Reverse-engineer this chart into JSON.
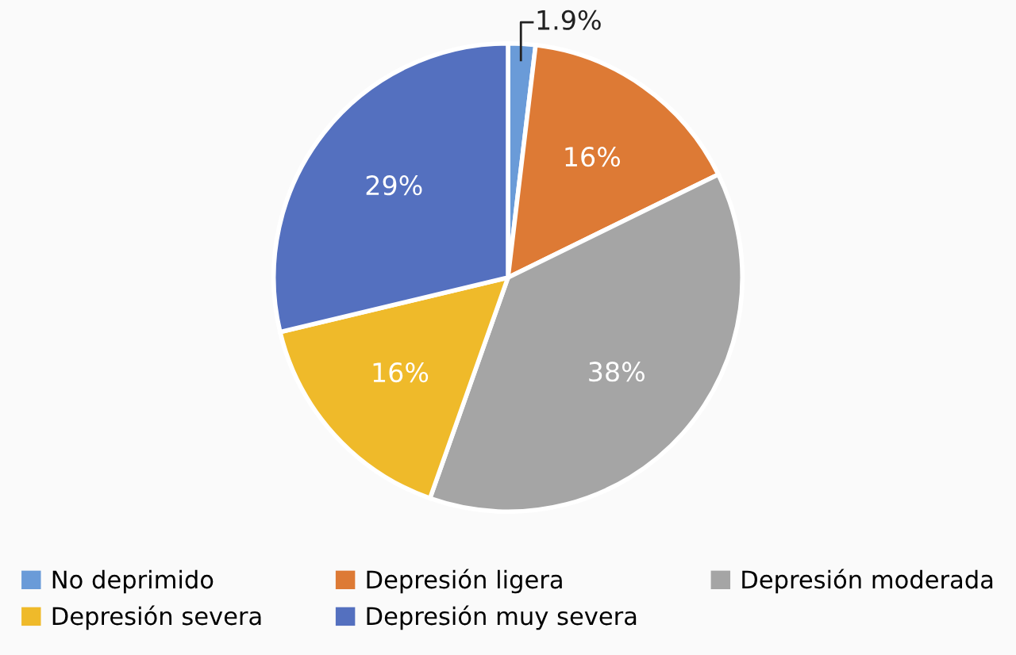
{
  "chart_data": {
    "type": "pie",
    "categories": [
      "No deprimido",
      "Depresión ligera",
      "Depresión moderada",
      "Depresión severa",
      "Depresión muy severa"
    ],
    "values": [
      1.9,
      16,
      38,
      16,
      29
    ],
    "colors": [
      "#6a9bd8",
      "#dd7a35",
      "#a5a5a5",
      "#efba2a",
      "#5470bf"
    ],
    "value_labels": [
      "1.9%",
      "16%",
      "38%",
      "16%",
      "29%"
    ],
    "legend": "bottom"
  }
}
